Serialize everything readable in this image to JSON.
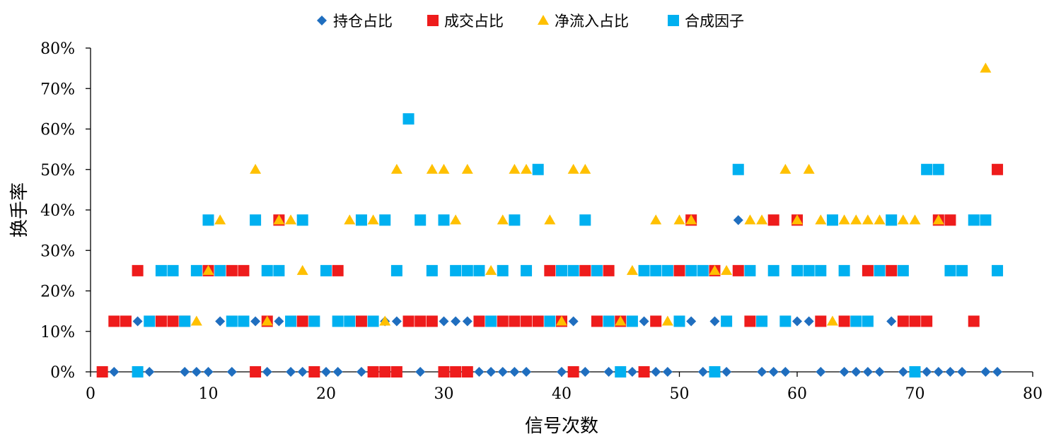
{
  "chart_data": {
    "type": "scatter",
    "xlabel": "信号次数",
    "ylabel": "换手率",
    "xlim": [
      0,
      80
    ],
    "ylim": [
      0,
      0.8
    ],
    "x_ticks": [
      0,
      10,
      20,
      30,
      40,
      50,
      60,
      70,
      80
    ],
    "y_ticks": [
      0,
      0.1,
      0.2,
      0.3,
      0.4,
      0.5,
      0.6,
      0.7,
      0.8
    ],
    "y_tick_labels": [
      "0%",
      "10%",
      "20%",
      "30%",
      "40%",
      "50%",
      "60%",
      "70%",
      "80%"
    ],
    "grid": false,
    "legend_position": "top",
    "series": [
      {
        "name": "持仓占比",
        "marker": "diamond",
        "color": "#1F6EBF",
        "points": [
          [
            2,
            0
          ],
          [
            4,
            0.125
          ],
          [
            5,
            0
          ],
          [
            8,
            0
          ],
          [
            9,
            0
          ],
          [
            10,
            0
          ],
          [
            11,
            0.125
          ],
          [
            12,
            0
          ],
          [
            14,
            0.125
          ],
          [
            15,
            0
          ],
          [
            16,
            0.125
          ],
          [
            17,
            0
          ],
          [
            18,
            0
          ],
          [
            20,
            0
          ],
          [
            21,
            0
          ],
          [
            23,
            0
          ],
          [
            25,
            0.125
          ],
          [
            26,
            0.125
          ],
          [
            28,
            0
          ],
          [
            30,
            0.125
          ],
          [
            31,
            0.125
          ],
          [
            32,
            0.125
          ],
          [
            33,
            0
          ],
          [
            34,
            0
          ],
          [
            35,
            0
          ],
          [
            36,
            0
          ],
          [
            37,
            0
          ],
          [
            40,
            0
          ],
          [
            41,
            0.125
          ],
          [
            42,
            0
          ],
          [
            44,
            0
          ],
          [
            46,
            0
          ],
          [
            47,
            0.125
          ],
          [
            48,
            0
          ],
          [
            49,
            0
          ],
          [
            51,
            0.125
          ],
          [
            52,
            0
          ],
          [
            53,
            0.125
          ],
          [
            54,
            0
          ],
          [
            55,
            0.375
          ],
          [
            57,
            0
          ],
          [
            58,
            0
          ],
          [
            59,
            0
          ],
          [
            60,
            0.125
          ],
          [
            61,
            0.125
          ],
          [
            62,
            0
          ],
          [
            64,
            0
          ],
          [
            65,
            0
          ],
          [
            66,
            0
          ],
          [
            67,
            0
          ],
          [
            68,
            0.125
          ],
          [
            69,
            0
          ],
          [
            71,
            0
          ],
          [
            72,
            0
          ],
          [
            73,
            0
          ],
          [
            74,
            0
          ],
          [
            76,
            0
          ],
          [
            77,
            0
          ]
        ]
      },
      {
        "name": "成交占比",
        "marker": "square",
        "color": "#EE1C1C",
        "points": [
          [
            1,
            0
          ],
          [
            2,
            0.125
          ],
          [
            3,
            0.125
          ],
          [
            4,
            0.25
          ],
          [
            6,
            0.125
          ],
          [
            7,
            0.125
          ],
          [
            8,
            0.125
          ],
          [
            10,
            0.25
          ],
          [
            12,
            0.25
          ],
          [
            13,
            0.25
          ],
          [
            14,
            0
          ],
          [
            15,
            0.125
          ],
          [
            16,
            0.375
          ],
          [
            18,
            0.125
          ],
          [
            19,
            0
          ],
          [
            21,
            0.25
          ],
          [
            23,
            0.125
          ],
          [
            24,
            0
          ],
          [
            25,
            0
          ],
          [
            26,
            0
          ],
          [
            27,
            0.125
          ],
          [
            28,
            0.125
          ],
          [
            29,
            0.125
          ],
          [
            30,
            0
          ],
          [
            31,
            0
          ],
          [
            32,
            0
          ],
          [
            33,
            0.125
          ],
          [
            35,
            0.125
          ],
          [
            36,
            0.125
          ],
          [
            37,
            0.125
          ],
          [
            38,
            0.125
          ],
          [
            39,
            0.25
          ],
          [
            40,
            0.125
          ],
          [
            41,
            0
          ],
          [
            42,
            0.25
          ],
          [
            43,
            0.125
          ],
          [
            44,
            0.25
          ],
          [
            45,
            0.125
          ],
          [
            47,
            0
          ],
          [
            48,
            0.125
          ],
          [
            50,
            0.25
          ],
          [
            51,
            0.375
          ],
          [
            53,
            0.25
          ],
          [
            55,
            0.25
          ],
          [
            56,
            0.125
          ],
          [
            58,
            0.375
          ],
          [
            60,
            0.375
          ],
          [
            62,
            0.125
          ],
          [
            64,
            0.125
          ],
          [
            66,
            0.25
          ],
          [
            68,
            0.25
          ],
          [
            69,
            0.125
          ],
          [
            70,
            0.125
          ],
          [
            71,
            0.125
          ],
          [
            72,
            0.375
          ],
          [
            73,
            0.375
          ],
          [
            75,
            0.125
          ],
          [
            77,
            0.5
          ]
        ]
      },
      {
        "name": "净流入占比",
        "marker": "triangle",
        "color": "#FFC000",
        "points": [
          [
            9,
            0.125
          ],
          [
            10,
            0.25
          ],
          [
            11,
            0.375
          ],
          [
            14,
            0.5
          ],
          [
            15,
            0.125
          ],
          [
            16,
            0.375
          ],
          [
            17,
            0.375
          ],
          [
            18,
            0.25
          ],
          [
            22,
            0.375
          ],
          [
            24,
            0.375
          ],
          [
            25,
            0.125
          ],
          [
            26,
            0.5
          ],
          [
            29,
            0.5
          ],
          [
            30,
            0.5
          ],
          [
            31,
            0.375
          ],
          [
            32,
            0.5
          ],
          [
            34,
            0.25
          ],
          [
            35,
            0.375
          ],
          [
            36,
            0.5
          ],
          [
            37,
            0.5
          ],
          [
            39,
            0.375
          ],
          [
            40,
            0.125
          ],
          [
            41,
            0.5
          ],
          [
            42,
            0.5
          ],
          [
            45,
            0.125
          ],
          [
            46,
            0.25
          ],
          [
            48,
            0.375
          ],
          [
            49,
            0.125
          ],
          [
            50,
            0.375
          ],
          [
            51,
            0.375
          ],
          [
            53,
            0.25
          ],
          [
            54,
            0.25
          ],
          [
            56,
            0.375
          ],
          [
            57,
            0.375
          ],
          [
            59,
            0.5
          ],
          [
            60,
            0.375
          ],
          [
            61,
            0.5
          ],
          [
            62,
            0.375
          ],
          [
            63,
            0.125
          ],
          [
            64,
            0.375
          ],
          [
            65,
            0.375
          ],
          [
            66,
            0.375
          ],
          [
            67,
            0.375
          ],
          [
            69,
            0.375
          ],
          [
            70,
            0.375
          ],
          [
            72,
            0.375
          ],
          [
            76,
            0.75
          ]
        ]
      },
      {
        "name": "合成因子",
        "marker": "square",
        "color": "#00B0F0",
        "points": [
          [
            4,
            0
          ],
          [
            5,
            0.125
          ],
          [
            6,
            0.25
          ],
          [
            7,
            0.25
          ],
          [
            8,
            0.125
          ],
          [
            9,
            0.25
          ],
          [
            10,
            0.375
          ],
          [
            11,
            0.25
          ],
          [
            12,
            0.125
          ],
          [
            13,
            0.125
          ],
          [
            14,
            0.375
          ],
          [
            15,
            0.25
          ],
          [
            16,
            0.25
          ],
          [
            17,
            0.125
          ],
          [
            18,
            0.375
          ],
          [
            19,
            0.125
          ],
          [
            20,
            0.25
          ],
          [
            21,
            0.125
          ],
          [
            22,
            0.125
          ],
          [
            23,
            0.375
          ],
          [
            24,
            0.125
          ],
          [
            25,
            0.375
          ],
          [
            26,
            0.25
          ],
          [
            27,
            0.625
          ],
          [
            28,
            0.375
          ],
          [
            29,
            0.25
          ],
          [
            30,
            0.375
          ],
          [
            31,
            0.25
          ],
          [
            32,
            0.25
          ],
          [
            33,
            0.25
          ],
          [
            34,
            0.125
          ],
          [
            35,
            0.25
          ],
          [
            36,
            0.375
          ],
          [
            37,
            0.25
          ],
          [
            38,
            0.5
          ],
          [
            39,
            0.125
          ],
          [
            40,
            0.25
          ],
          [
            41,
            0.25
          ],
          [
            42,
            0.375
          ],
          [
            43,
            0.25
          ],
          [
            44,
            0.125
          ],
          [
            45,
            0
          ],
          [
            46,
            0.125
          ],
          [
            47,
            0.25
          ],
          [
            48,
            0.25
          ],
          [
            49,
            0.25
          ],
          [
            50,
            0.125
          ],
          [
            51,
            0.25
          ],
          [
            52,
            0.25
          ],
          [
            53,
            0
          ],
          [
            54,
            0.125
          ],
          [
            55,
            0.5
          ],
          [
            56,
            0.25
          ],
          [
            57,
            0.125
          ],
          [
            58,
            0.25
          ],
          [
            59,
            0.125
          ],
          [
            60,
            0.25
          ],
          [
            61,
            0.25
          ],
          [
            62,
            0.25
          ],
          [
            63,
            0.375
          ],
          [
            64,
            0.25
          ],
          [
            65,
            0.125
          ],
          [
            66,
            0.125
          ],
          [
            67,
            0.25
          ],
          [
            68,
            0.375
          ],
          [
            69,
            0.25
          ],
          [
            70,
            0
          ],
          [
            71,
            0.5
          ],
          [
            72,
            0.5
          ],
          [
            73,
            0.25
          ],
          [
            74,
            0.25
          ],
          [
            75,
            0.375
          ],
          [
            76,
            0.375
          ],
          [
            77,
            0.25
          ]
        ]
      }
    ]
  }
}
